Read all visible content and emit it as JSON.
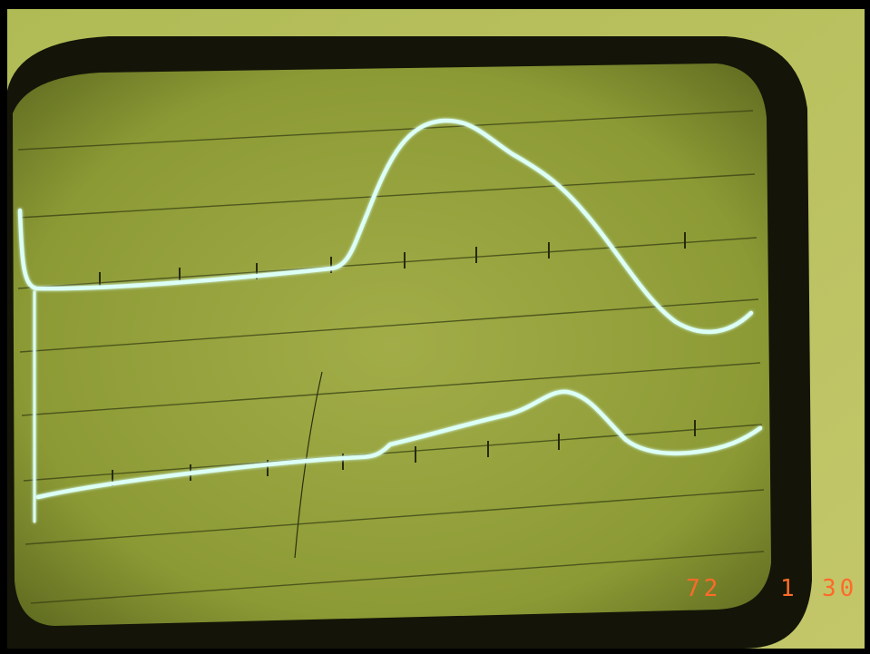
{
  "date_stamp": {
    "year": "72",
    "month": "1",
    "day": "30"
  }
}
